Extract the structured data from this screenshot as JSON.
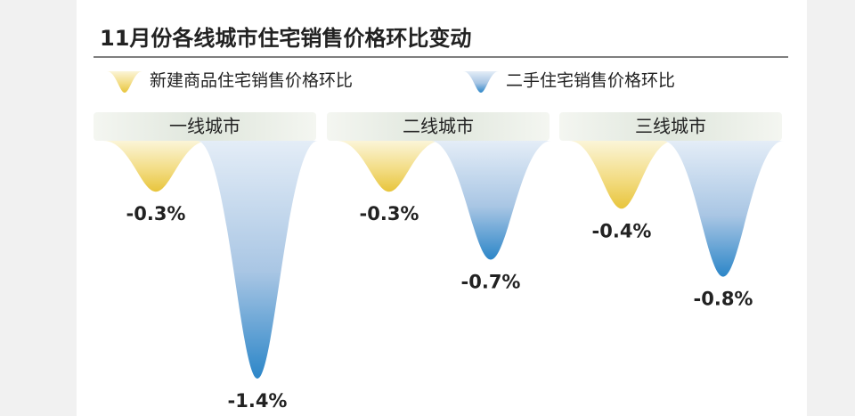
{
  "chart_data": {
    "type": "drop",
    "title": "11月份各线城市住宅销售价格环比变动",
    "categories": [
      "一线城市",
      "二线城市",
      "三线城市"
    ],
    "series": [
      {
        "name": "新建商品住宅销售价格环比",
        "color": "#e8c53c",
        "values": [
          -0.3,
          -0.3,
          -0.4
        ],
        "value_labels": [
          "-0.3%",
          "-0.3%",
          "-0.4%"
        ]
      },
      {
        "name": "二手住宅销售价格环比",
        "color": "#2c86c8",
        "values": [
          -1.4,
          -0.7,
          -0.8
        ],
        "value_labels": [
          "-1.4%",
          "-0.7%",
          "-0.8%"
        ]
      }
    ]
  }
}
